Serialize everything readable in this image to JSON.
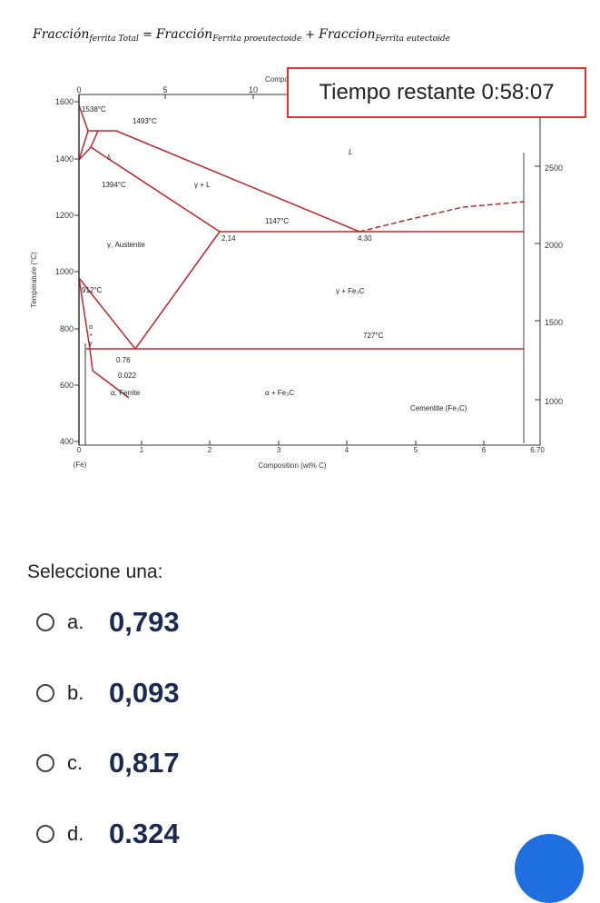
{
  "formula": {
    "total_main": "Fracción",
    "total_sub": "ferrita Total",
    "eq": "=",
    "pro_main": "Fracción",
    "pro_sub": "Ferrita proeutectoide",
    "plus": "+",
    "eut_main": "Fraccion",
    "eut_sub": "Ferrita eutectoide"
  },
  "timer": {
    "text": "Tiempo restante 0:58:07"
  },
  "diagram": {
    "top_axis_label": "Compo",
    "top_ticks": [
      "0",
      "5",
      "10"
    ],
    "y_ticks": [
      "1600",
      "1400",
      "1200",
      "1000",
      "800",
      "600",
      "400"
    ],
    "y_axis_label": "Temperature (°C)",
    "right_ticks": [
      "2500",
      "2000",
      "1500",
      "1000"
    ],
    "x_ticks": [
      "0",
      "1",
      "2",
      "3",
      "4",
      "5",
      "6",
      "6.70"
    ],
    "x_origin_label": "(Fe)",
    "x_axis_label": "Composition (wt% C)",
    "labels": {
      "t1538": "1538°C",
      "t1493": "1493°C",
      "delta": "δ",
      "L": "L",
      "t1394": "1394°C",
      "gammaL": "γ + L",
      "t1147": "1147°C",
      "c214": "2.14",
      "c430": "4.30",
      "austenite": "γ, Austenite",
      "t912": "912°C",
      "gammaFe3C": "γ + Fe₃C",
      "t727": "727°C",
      "alpha": "α",
      "plus": "+",
      "gamma": "γ",
      "c076": "0.76",
      "c0022": "0.022",
      "ferrite": "α, Ferrite",
      "alphaFe3C": "α + Fe₃C",
      "cementite": "Cementite (Fe₃C)"
    }
  },
  "question": {
    "prompt": "Seleccione una:",
    "options": [
      {
        "letter": "a.",
        "value": "0,793"
      },
      {
        "letter": "b.",
        "value": "0,093"
      },
      {
        "letter": "c.",
        "value": "0,817"
      },
      {
        "letter": "d.",
        "value": "0.324"
      }
    ]
  },
  "colors": {
    "phase_lines": "#c0262b",
    "timer_border": "#d9342f",
    "answer_text": "#1b2a52",
    "badge": "#1f6fe0"
  }
}
